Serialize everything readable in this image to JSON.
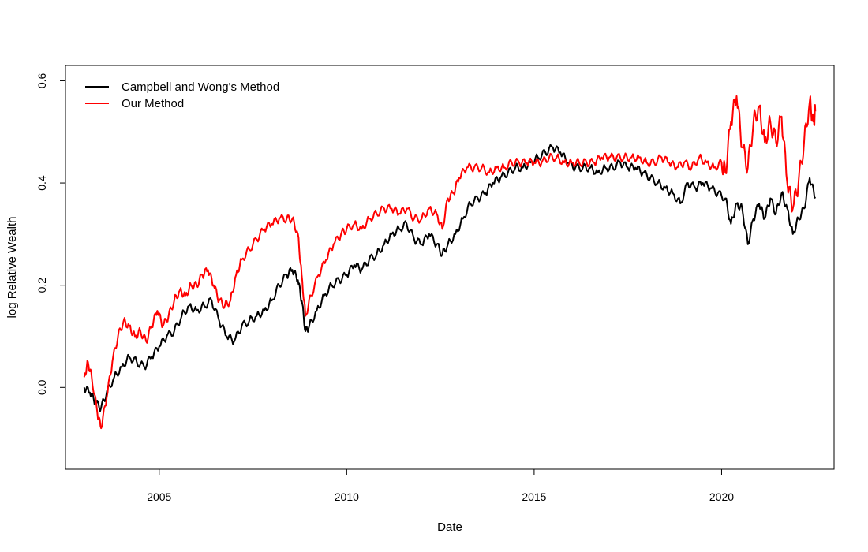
{
  "chart_data": {
    "type": "line",
    "title": "",
    "xlabel": "Date",
    "ylabel": "log Relative Wealth",
    "xlim": [
      2002.5,
      2023.0
    ],
    "ylim": [
      -0.16,
      0.63
    ],
    "x_ticks": [
      2005,
      2010,
      2015,
      2020
    ],
    "x_tick_labels": [
      "2005",
      "2010",
      "2015",
      "2020"
    ],
    "y_ticks": [
      0.0,
      0.2,
      0.4,
      0.6
    ],
    "y_tick_labels": [
      "0.0",
      "0.2",
      "0.4",
      "0.6"
    ],
    "grid": false,
    "legend": {
      "position": "top-left",
      "frame": false
    },
    "series": [
      {
        "name": "Campbell and Wong's Method",
        "color": "#000000",
        "points": [
          [
            2003.0,
            0.0
          ],
          [
            2003.15,
            -0.01
          ],
          [
            2003.3,
            -0.03
          ],
          [
            2003.45,
            -0.04
          ],
          [
            2003.6,
            -0.01
          ],
          [
            2003.8,
            0.02
          ],
          [
            2004.0,
            0.04
          ],
          [
            2004.2,
            0.06
          ],
          [
            2004.4,
            0.05
          ],
          [
            2004.6,
            0.04
          ],
          [
            2004.8,
            0.06
          ],
          [
            2005.0,
            0.08
          ],
          [
            2005.2,
            0.1
          ],
          [
            2005.4,
            0.11
          ],
          [
            2005.6,
            0.14
          ],
          [
            2005.8,
            0.16
          ],
          [
            2006.0,
            0.15
          ],
          [
            2006.2,
            0.16
          ],
          [
            2006.4,
            0.17
          ],
          [
            2006.6,
            0.13
          ],
          [
            2006.8,
            0.1
          ],
          [
            2007.0,
            0.09
          ],
          [
            2007.2,
            0.12
          ],
          [
            2007.4,
            0.13
          ],
          [
            2007.6,
            0.14
          ],
          [
            2007.8,
            0.15
          ],
          [
            2008.0,
            0.17
          ],
          [
            2008.2,
            0.2
          ],
          [
            2008.4,
            0.22
          ],
          [
            2008.55,
            0.23
          ],
          [
            2008.7,
            0.21
          ],
          [
            2008.8,
            0.17
          ],
          [
            2008.9,
            0.11
          ],
          [
            2009.0,
            0.12
          ],
          [
            2009.2,
            0.15
          ],
          [
            2009.4,
            0.18
          ],
          [
            2009.6,
            0.2
          ],
          [
            2009.8,
            0.21
          ],
          [
            2010.0,
            0.22
          ],
          [
            2010.2,
            0.24
          ],
          [
            2010.4,
            0.23
          ],
          [
            2010.6,
            0.25
          ],
          [
            2010.8,
            0.26
          ],
          [
            2011.0,
            0.28
          ],
          [
            2011.2,
            0.3
          ],
          [
            2011.4,
            0.31
          ],
          [
            2011.6,
            0.32
          ],
          [
            2011.8,
            0.29
          ],
          [
            2012.0,
            0.28
          ],
          [
            2012.2,
            0.3
          ],
          [
            2012.4,
            0.28
          ],
          [
            2012.55,
            0.26
          ],
          [
            2012.7,
            0.28
          ],
          [
            2012.9,
            0.3
          ],
          [
            2013.1,
            0.33
          ],
          [
            2013.3,
            0.36
          ],
          [
            2013.5,
            0.37
          ],
          [
            2013.7,
            0.38
          ],
          [
            2013.9,
            0.4
          ],
          [
            2014.1,
            0.41
          ],
          [
            2014.3,
            0.42
          ],
          [
            2014.5,
            0.43
          ],
          [
            2014.7,
            0.43
          ],
          [
            2014.9,
            0.44
          ],
          [
            2015.1,
            0.45
          ],
          [
            2015.3,
            0.46
          ],
          [
            2015.5,
            0.47
          ],
          [
            2015.7,
            0.46
          ],
          [
            2015.9,
            0.44
          ],
          [
            2016.1,
            0.43
          ],
          [
            2016.3,
            0.43
          ],
          [
            2016.5,
            0.43
          ],
          [
            2016.7,
            0.42
          ],
          [
            2016.9,
            0.43
          ],
          [
            2017.1,
            0.43
          ],
          [
            2017.3,
            0.44
          ],
          [
            2017.5,
            0.43
          ],
          [
            2017.7,
            0.43
          ],
          [
            2017.9,
            0.42
          ],
          [
            2018.1,
            0.41
          ],
          [
            2018.3,
            0.4
          ],
          [
            2018.5,
            0.39
          ],
          [
            2018.7,
            0.38
          ],
          [
            2018.9,
            0.36
          ],
          [
            2019.1,
            0.4
          ],
          [
            2019.3,
            0.39
          ],
          [
            2019.5,
            0.4
          ],
          [
            2019.7,
            0.39
          ],
          [
            2019.9,
            0.38
          ],
          [
            2020.1,
            0.37
          ],
          [
            2020.25,
            0.32
          ],
          [
            2020.4,
            0.36
          ],
          [
            2020.55,
            0.35
          ],
          [
            2020.7,
            0.28
          ],
          [
            2020.85,
            0.33
          ],
          [
            2021.0,
            0.36
          ],
          [
            2021.15,
            0.33
          ],
          [
            2021.3,
            0.37
          ],
          [
            2021.45,
            0.34
          ],
          [
            2021.6,
            0.38
          ],
          [
            2021.75,
            0.35
          ],
          [
            2021.9,
            0.3
          ],
          [
            2022.05,
            0.33
          ],
          [
            2022.2,
            0.35
          ],
          [
            2022.35,
            0.41
          ],
          [
            2022.5,
            0.37
          ]
        ]
      },
      {
        "name": "Our Method",
        "color": "#ff0000",
        "points": [
          [
            2003.0,
            0.02
          ],
          [
            2003.1,
            0.05
          ],
          [
            2003.2,
            0.02
          ],
          [
            2003.35,
            -0.05
          ],
          [
            2003.45,
            -0.08
          ],
          [
            2003.6,
            -0.02
          ],
          [
            2003.75,
            0.05
          ],
          [
            2003.9,
            0.1
          ],
          [
            2004.05,
            0.13
          ],
          [
            2004.2,
            0.12
          ],
          [
            2004.35,
            0.1
          ],
          [
            2004.5,
            0.11
          ],
          [
            2004.65,
            0.09
          ],
          [
            2004.8,
            0.12
          ],
          [
            2004.95,
            0.15
          ],
          [
            2005.1,
            0.12
          ],
          [
            2005.25,
            0.14
          ],
          [
            2005.4,
            0.17
          ],
          [
            2005.55,
            0.19
          ],
          [
            2005.7,
            0.18
          ],
          [
            2005.85,
            0.2
          ],
          [
            2006.0,
            0.2
          ],
          [
            2006.15,
            0.22
          ],
          [
            2006.3,
            0.23
          ],
          [
            2006.45,
            0.2
          ],
          [
            2006.6,
            0.17
          ],
          [
            2006.75,
            0.16
          ],
          [
            2006.9,
            0.17
          ],
          [
            2007.05,
            0.22
          ],
          [
            2007.2,
            0.25
          ],
          [
            2007.4,
            0.27
          ],
          [
            2007.6,
            0.29
          ],
          [
            2007.8,
            0.31
          ],
          [
            2008.0,
            0.32
          ],
          [
            2008.2,
            0.33
          ],
          [
            2008.4,
            0.33
          ],
          [
            2008.55,
            0.33
          ],
          [
            2008.7,
            0.3
          ],
          [
            2008.8,
            0.22
          ],
          [
            2008.9,
            0.14
          ],
          [
            2009.05,
            0.18
          ],
          [
            2009.25,
            0.22
          ],
          [
            2009.45,
            0.25
          ],
          [
            2009.65,
            0.28
          ],
          [
            2009.85,
            0.3
          ],
          [
            2010.0,
            0.31
          ],
          [
            2010.2,
            0.32
          ],
          [
            2010.4,
            0.31
          ],
          [
            2010.6,
            0.33
          ],
          [
            2010.8,
            0.34
          ],
          [
            2011.0,
            0.35
          ],
          [
            2011.2,
            0.35
          ],
          [
            2011.4,
            0.34
          ],
          [
            2011.6,
            0.35
          ],
          [
            2011.8,
            0.33
          ],
          [
            2012.0,
            0.33
          ],
          [
            2012.2,
            0.35
          ],
          [
            2012.4,
            0.34
          ],
          [
            2012.55,
            0.31
          ],
          [
            2012.7,
            0.37
          ],
          [
            2012.85,
            0.38
          ],
          [
            2013.0,
            0.41
          ],
          [
            2013.2,
            0.43
          ],
          [
            2013.4,
            0.43
          ],
          [
            2013.6,
            0.43
          ],
          [
            2013.8,
            0.42
          ],
          [
            2014.0,
            0.43
          ],
          [
            2014.2,
            0.43
          ],
          [
            2014.4,
            0.44
          ],
          [
            2014.6,
            0.44
          ],
          [
            2014.8,
            0.44
          ],
          [
            2015.0,
            0.44
          ],
          [
            2015.2,
            0.44
          ],
          [
            2015.4,
            0.45
          ],
          [
            2015.6,
            0.45
          ],
          [
            2015.8,
            0.44
          ],
          [
            2016.0,
            0.44
          ],
          [
            2016.2,
            0.44
          ],
          [
            2016.4,
            0.44
          ],
          [
            2016.6,
            0.44
          ],
          [
            2016.8,
            0.45
          ],
          [
            2017.0,
            0.45
          ],
          [
            2017.2,
            0.45
          ],
          [
            2017.4,
            0.45
          ],
          [
            2017.6,
            0.45
          ],
          [
            2017.8,
            0.45
          ],
          [
            2018.0,
            0.44
          ],
          [
            2018.2,
            0.44
          ],
          [
            2018.4,
            0.45
          ],
          [
            2018.6,
            0.44
          ],
          [
            2018.8,
            0.43
          ],
          [
            2019.0,
            0.44
          ],
          [
            2019.2,
            0.43
          ],
          [
            2019.4,
            0.45
          ],
          [
            2019.6,
            0.44
          ],
          [
            2019.8,
            0.43
          ],
          [
            2020.0,
            0.44
          ],
          [
            2020.1,
            0.42
          ],
          [
            2020.25,
            0.52
          ],
          [
            2020.4,
            0.57
          ],
          [
            2020.55,
            0.47
          ],
          [
            2020.7,
            0.43
          ],
          [
            2020.85,
            0.52
          ],
          [
            2021.0,
            0.55
          ],
          [
            2021.15,
            0.48
          ],
          [
            2021.3,
            0.52
          ],
          [
            2021.45,
            0.48
          ],
          [
            2021.6,
            0.53
          ],
          [
            2021.75,
            0.4
          ],
          [
            2021.9,
            0.35
          ],
          [
            2022.05,
            0.4
          ],
          [
            2022.2,
            0.48
          ],
          [
            2022.35,
            0.56
          ],
          [
            2022.45,
            0.52
          ],
          [
            2022.5,
            0.54
          ]
        ]
      }
    ]
  }
}
